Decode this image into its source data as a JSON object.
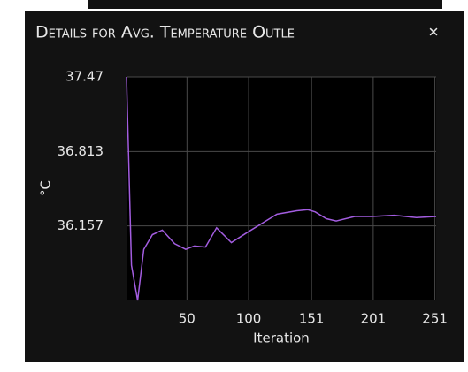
{
  "header": {
    "title": "Details for Avg. Temperature Outle",
    "close": "✕"
  },
  "chart_data": {
    "type": "line",
    "xlabel": "Iteration",
    "ylabel": "°C",
    "color": "#a35de0",
    "grid": true,
    "x": [
      1,
      5,
      10,
      15,
      22,
      30,
      40,
      49,
      56,
      65,
      74,
      86,
      99,
      111,
      123,
      139,
      148,
      154,
      163,
      171,
      186,
      200,
      218,
      236,
      252
    ],
    "values": [
      37.47,
      35.81,
      35.5,
      35.95,
      36.08,
      36.12,
      36.0,
      35.95,
      35.98,
      35.97,
      36.14,
      36.01,
      36.1,
      36.18,
      36.26,
      36.29,
      36.3,
      36.28,
      36.22,
      36.2,
      36.24,
      36.24,
      36.25,
      36.23,
      36.24
    ],
    "xlim": [
      1,
      252
    ],
    "xticks": [
      50,
      100,
      151,
      201,
      251
    ],
    "ylim": [
      35.5,
      37.47
    ],
    "yticks": [
      36.157,
      36.813,
      37.47
    ]
  }
}
